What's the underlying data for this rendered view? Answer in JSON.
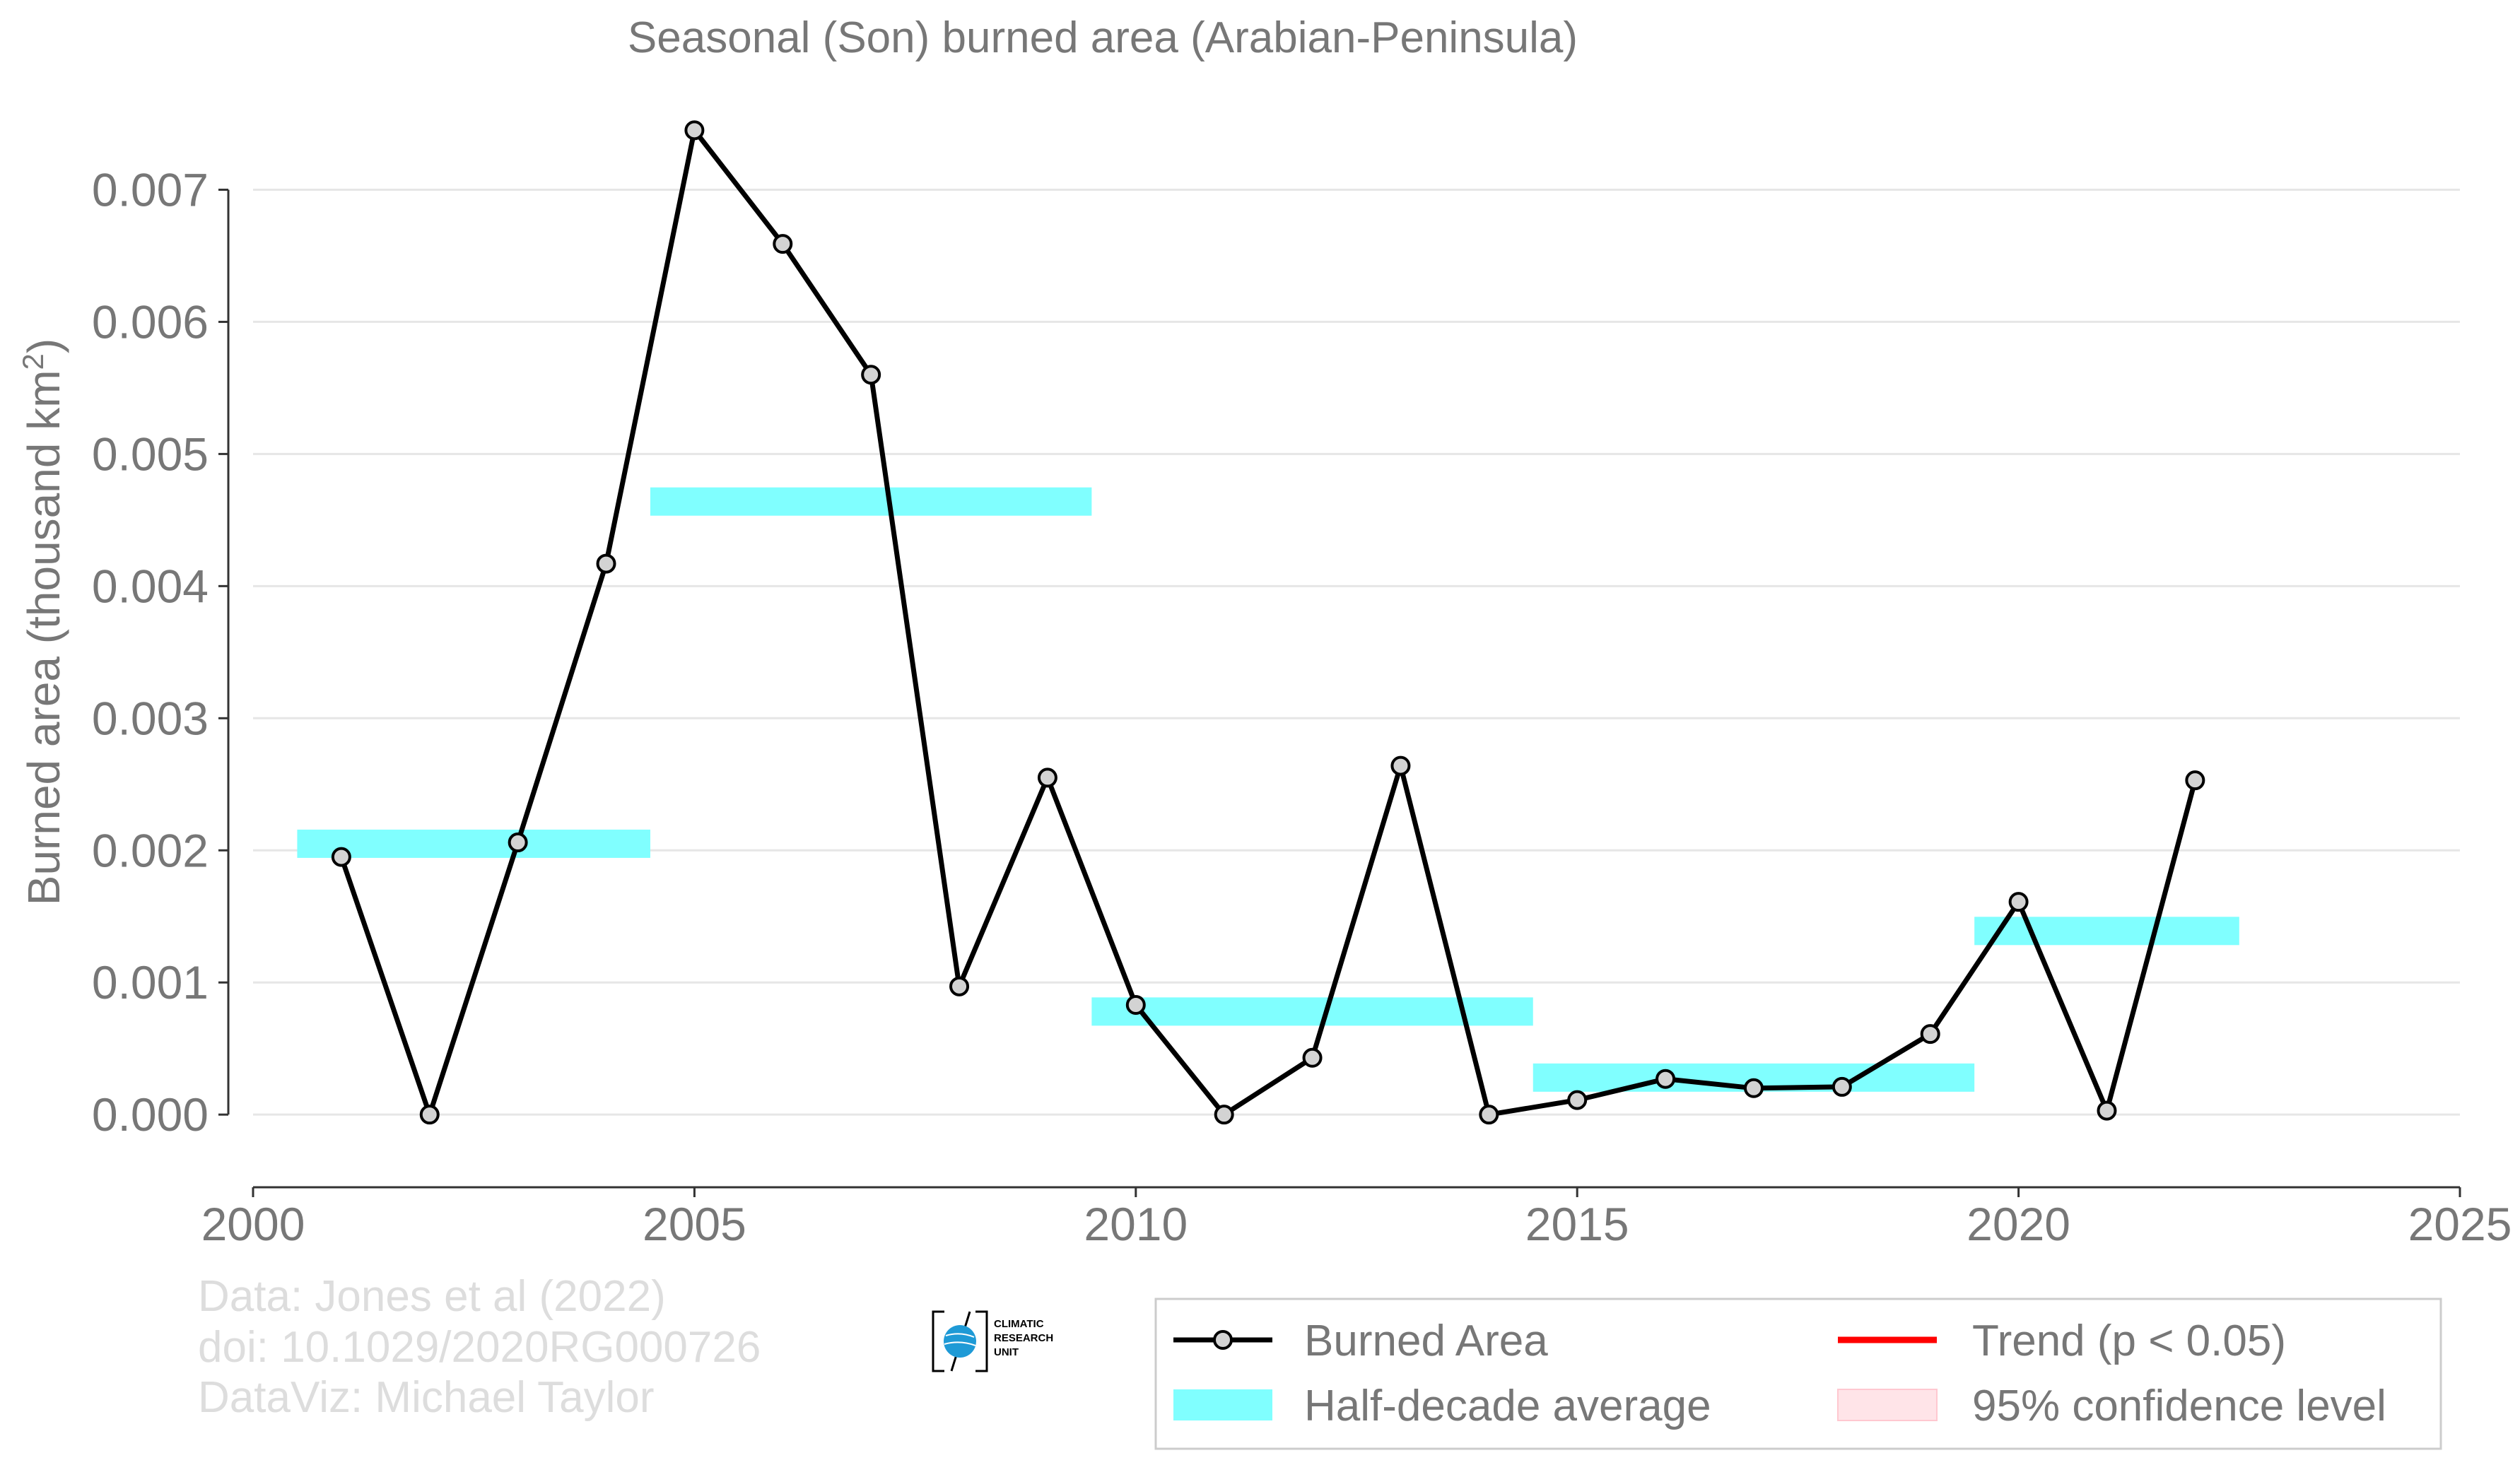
{
  "chart_data": {
    "type": "line",
    "title": "Seasonal (Son) burned area (Arabian-Peninsula)",
    "ylabel_main": "Burned area (thousand km",
    "ylabel_sup": "2",
    "ylabel_close": ")",
    "xlim": [
      2000,
      2025
    ],
    "ylim": [
      -0.00055,
      0.0075
    ],
    "x_ticks": [
      2000,
      2005,
      2010,
      2015,
      2020,
      2025
    ],
    "x_tick_labels": [
      "2000",
      "2005",
      "2010",
      "2015",
      "2020",
      "2025"
    ],
    "y_ticks": [
      0.0,
      0.001,
      0.002,
      0.003,
      0.004,
      0.005,
      0.006,
      0.007
    ],
    "y_tick_labels": [
      "0.000",
      "0.001",
      "0.002",
      "0.003",
      "0.004",
      "0.005",
      "0.006",
      "0.007"
    ],
    "grid": "horizontal",
    "legend_placement": "bottom-right",
    "series": [
      {
        "name": "Burned Area",
        "color": "#000000",
        "marker_fill": "#d3d3d3",
        "x": [
          2001,
          2002,
          2003,
          2004,
          2005,
          2006,
          2007,
          2008,
          2009,
          2010,
          2011,
          2012,
          2013,
          2014,
          2015,
          2016,
          2017,
          2018,
          2019,
          2020,
          2021,
          2022
        ],
        "y": [
          0.00195,
          0.0,
          0.00206,
          0.00417,
          0.00745,
          0.00659,
          0.0056,
          0.00097,
          0.00255,
          0.00083,
          0.0,
          0.00043,
          0.00264,
          0.0,
          0.00011,
          0.00027,
          0.0002,
          0.00021,
          0.00061,
          0.00161,
          3e-05,
          0.00253
        ]
      }
    ],
    "half_decade_averages": {
      "name": "Half-decade average",
      "color": "#80ffff",
      "bands": [
        {
          "x_start": 2000.5,
          "x_end": 2004.5,
          "y": 0.00205
        },
        {
          "x_start": 2004.5,
          "x_end": 2009.5,
          "y": 0.00464
        },
        {
          "x_start": 2009.5,
          "x_end": 2014.5,
          "y": 0.00078
        },
        {
          "x_start": 2014.5,
          "x_end": 2019.5,
          "y": 0.00028
        },
        {
          "x_start": 2019.5,
          "x_end": 2022.5,
          "y": 0.00139
        }
      ]
    },
    "legend": [
      {
        "name": "Burned Area",
        "kind": "line-marker",
        "color": "#000000"
      },
      {
        "name": "Half-decade average",
        "kind": "band",
        "color": "#80ffff"
      },
      {
        "name": "Trend (p < 0.05)",
        "kind": "line",
        "color": "#ff0000"
      },
      {
        "name": "95% confidence level",
        "kind": "patch",
        "color": "#ffe4e8"
      }
    ]
  },
  "credits": {
    "line1": "Data: Jones et al (2022)",
    "line2": "doi: 10.1029/2020RG000726",
    "line3": "DataViz: Michael Taylor"
  },
  "logo": {
    "line1": "CLIMATIC",
    "line2": "RESEARCH",
    "line3": "UNIT"
  }
}
